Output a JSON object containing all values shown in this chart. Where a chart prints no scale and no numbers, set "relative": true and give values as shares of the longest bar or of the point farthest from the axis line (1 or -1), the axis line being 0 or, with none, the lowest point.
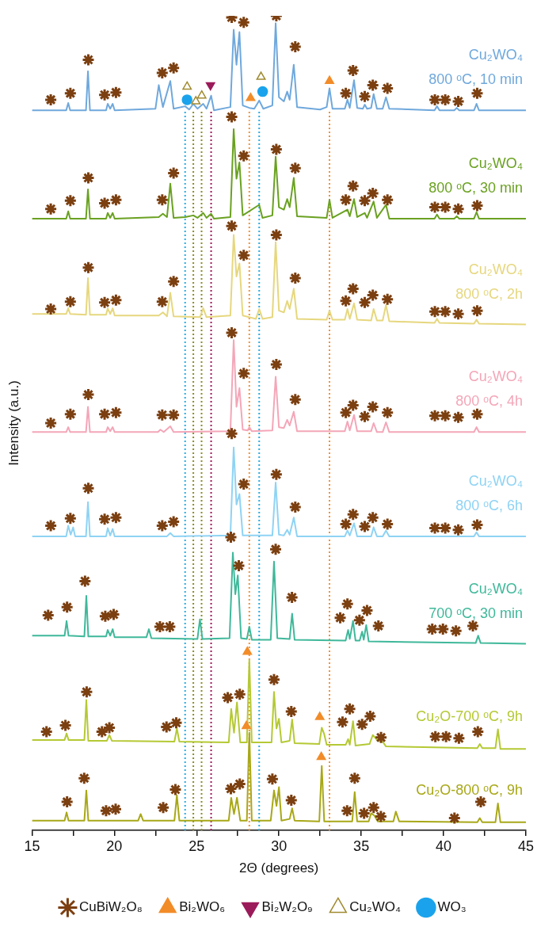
{
  "chart_data": {
    "type": "line",
    "relative": true,
    "xlabel": "2Θ (degrees)",
    "ylabel": "Intensity (a.u.)",
    "xlim": [
      15,
      45
    ],
    "xticks": [
      15,
      {
        "value": 17.5,
        "label": null
      },
      20,
      {
        "value": 22.5,
        "label": null
      },
      25,
      {
        "value": 27.5,
        "label": null
      },
      30,
      {
        "value": 32.5,
        "label": null
      },
      35,
      {
        "value": 37.5,
        "label": null
      },
      40,
      {
        "value": 42.5,
        "label": null
      },
      45
    ],
    "tick_labels": "x",
    "legend": "bottom",
    "ref_lines": [
      {
        "axis": "x",
        "value": 24.3,
        "color": "#29abe2",
        "line_style": "dotted"
      },
      {
        "axis": "x",
        "value": 24.8,
        "color": "#8c8c28",
        "line_style": "dotted"
      },
      {
        "axis": "x",
        "value": 25.3,
        "color": "#8c8c28",
        "line_style": "dotted"
      },
      {
        "axis": "x",
        "value": 25.88,
        "color": "#a0195a",
        "line_style": "dotted"
      },
      {
        "axis": "x",
        "value": 28.2,
        "color": "#f0913c",
        "line_style": "dotted"
      },
      {
        "axis": "x",
        "value": 28.8,
        "color": "#29abe2",
        "line_style": "dotted"
      },
      {
        "axis": "x",
        "value": 33.07,
        "color": "#f0913c",
        "line_style": "dotted"
      }
    ],
    "series": [
      {
        "type": "line",
        "marker": "none",
        "name": "Cu₂WO₄\n800 ᵒC, 10 min",
        "color": "#6fa8dc",
        "x": [
          15,
          17.08,
          17.2,
          17.32,
          18.28,
          18.4,
          18.52,
          19.5,
          19.6,
          19.75,
          19.9,
          20.02,
          22.5,
          22.7,
          22.95,
          23.4,
          23.6,
          24.3,
          24.55,
          24.8,
          25.05,
          25.4,
          25.6,
          25.88,
          26.05,
          27.05,
          27.25,
          27.42,
          27.6,
          27.8,
          28.2,
          28.5,
          28.8,
          29.05,
          29.6,
          29.8,
          30.0,
          30.3,
          30.5,
          30.65,
          30.9,
          31.1,
          32.5,
          32.9,
          33.07,
          33.25,
          34.0,
          34.16,
          34.3,
          34.56,
          34.75,
          35.1,
          35.21,
          35.35,
          35.6,
          35.75,
          35.95,
          36.3,
          36.5,
          36.7,
          39.45,
          39.6,
          39.75,
          40.65,
          40.8,
          40.95,
          41.85,
          42.0,
          42.15,
          45
        ],
        "values": [
          0.884,
          0.884,
          0.893,
          0.884,
          0.884,
          0.932,
          0.884,
          0.884,
          0.892,
          0.886,
          0.892,
          0.884,
          0.886,
          0.915,
          0.888,
          0.92,
          0.886,
          0.889,
          0.885,
          0.892,
          0.886,
          0.892,
          0.886,
          0.902,
          0.884,
          0.888,
          0.983,
          0.94,
          0.98,
          0.89,
          0.887,
          0.886,
          0.896,
          0.886,
          0.89,
          0.991,
          0.9,
          0.895,
          0.907,
          0.897,
          0.94,
          0.888,
          0.885,
          0.888,
          0.911,
          0.886,
          0.886,
          0.897,
          0.887,
          0.921,
          0.887,
          0.886,
          0.891,
          0.886,
          0.887,
          0.904,
          0.886,
          0.886,
          0.9,
          0.886,
          0.884,
          0.889,
          0.884,
          0.884,
          0.887,
          0.884,
          0.884,
          0.892,
          0.884,
          0.884
        ]
      },
      {
        "type": "line",
        "marker": "none",
        "name": "Cu₂WO₄\n800 ᵒC, 30 min",
        "color": "#6aa121",
        "x": [
          15,
          17.08,
          17.2,
          17.32,
          18.28,
          18.4,
          18.52,
          19.5,
          19.6,
          19.75,
          19.9,
          20.02,
          22.7,
          22.95,
          23.2,
          23.4,
          23.6,
          24.3,
          24.8,
          25.05,
          25.4,
          25.6,
          25.88,
          26.05,
          27.05,
          27.25,
          27.42,
          27.6,
          27.8,
          28.8,
          29.0,
          29.6,
          29.8,
          30.0,
          30.3,
          30.5,
          30.65,
          30.9,
          31.1,
          32.9,
          33.07,
          33.25,
          34.16,
          34.3,
          34.56,
          34.75,
          35.21,
          35.35,
          35.75,
          35.95,
          36.5,
          36.7,
          39.45,
          39.6,
          39.75,
          40.65,
          40.8,
          40.95,
          41.85,
          42.0,
          42.15,
          45
        ],
        "values": [
          0.751,
          0.751,
          0.76,
          0.751,
          0.751,
          0.787,
          0.751,
          0.751,
          0.758,
          0.752,
          0.758,
          0.751,
          0.753,
          0.757,
          0.753,
          0.794,
          0.752,
          0.753,
          0.755,
          0.752,
          0.758,
          0.752,
          0.757,
          0.751,
          0.753,
          0.861,
          0.8,
          0.82,
          0.755,
          0.768,
          0.752,
          0.755,
          0.827,
          0.765,
          0.762,
          0.775,
          0.765,
          0.801,
          0.754,
          0.752,
          0.774,
          0.752,
          0.762,
          0.754,
          0.775,
          0.753,
          0.758,
          0.752,
          0.772,
          0.752,
          0.768,
          0.751,
          0.751,
          0.756,
          0.751,
          0.751,
          0.754,
          0.751,
          0.751,
          0.759,
          0.751,
          0.751
        ]
      },
      {
        "type": "line",
        "marker": "none",
        "name": "Cu₂WO₄\n800 ᵒC, 2h",
        "color": "#e6d77e",
        "x": [
          15,
          17.08,
          17.2,
          17.32,
          18.28,
          18.4,
          18.52,
          19.5,
          19.6,
          19.75,
          19.9,
          20.02,
          22.7,
          22.95,
          23.2,
          23.4,
          23.6,
          25.2,
          25.4,
          25.6,
          27.05,
          27.25,
          27.42,
          27.6,
          27.8,
          28.6,
          28.8,
          29.0,
          29.6,
          29.8,
          30.0,
          30.3,
          30.5,
          30.65,
          30.9,
          31.1,
          32.9,
          33.07,
          33.25,
          34.0,
          34.16,
          34.3,
          34.56,
          34.75,
          35.6,
          35.75,
          35.95,
          36.3,
          36.5,
          36.7,
          39.45,
          39.6,
          39.75,
          41.85,
          42.0,
          42.15,
          45
        ],
        "values": [
          0.634,
          0.634,
          0.641,
          0.634,
          0.633,
          0.678,
          0.633,
          0.633,
          0.641,
          0.634,
          0.641,
          0.632,
          0.632,
          0.636,
          0.631,
          0.66,
          0.631,
          0.63,
          0.641,
          0.63,
          0.632,
          0.731,
          0.68,
          0.696,
          0.632,
          0.628,
          0.64,
          0.628,
          0.63,
          0.722,
          0.638,
          0.636,
          0.65,
          0.64,
          0.665,
          0.628,
          0.627,
          0.638,
          0.627,
          0.627,
          0.64,
          0.628,
          0.647,
          0.627,
          0.626,
          0.64,
          0.626,
          0.626,
          0.645,
          0.625,
          0.623,
          0.628,
          0.623,
          0.622,
          0.627,
          0.622,
          0.621
        ]
      },
      {
        "type": "line",
        "marker": "none",
        "name": "Cu₂WO₄\n800 ᵒC, 4h",
        "color": "#f4a6b8",
        "x": [
          15,
          17.08,
          17.2,
          17.32,
          18.28,
          18.4,
          18.52,
          19.5,
          19.6,
          19.75,
          19.9,
          20.02,
          22.65,
          22.8,
          23.0,
          23.4,
          23.6,
          27.05,
          27.25,
          27.42,
          27.6,
          27.8,
          28.1,
          28.2,
          28.35,
          29.6,
          29.8,
          30.0,
          30.3,
          30.5,
          30.65,
          30.9,
          31.1,
          34.0,
          34.16,
          34.3,
          34.56,
          34.75,
          35.6,
          35.75,
          35.95,
          36.3,
          36.5,
          36.7,
          41.85,
          42.0,
          42.15,
          45
        ],
        "values": [
          0.489,
          0.489,
          0.495,
          0.489,
          0.489,
          0.52,
          0.489,
          0.489,
          0.495,
          0.49,
          0.495,
          0.489,
          0.489,
          0.492,
          0.489,
          0.496,
          0.489,
          0.49,
          0.602,
          0.52,
          0.543,
          0.492,
          0.491,
          0.495,
          0.49,
          0.491,
          0.557,
          0.495,
          0.494,
          0.504,
          0.497,
          0.514,
          0.49,
          0.49,
          0.502,
          0.491,
          0.51,
          0.49,
          0.49,
          0.5,
          0.489,
          0.489,
          0.501,
          0.489,
          0.489,
          0.495,
          0.489,
          0.489
        ]
      },
      {
        "type": "line",
        "marker": "none",
        "name": "Cu₂WO₄\n800 ᵒC, 6h",
        "color": "#8fd3f4",
        "x": [
          15,
          17.08,
          17.2,
          17.35,
          17.5,
          17.62,
          18.28,
          18.4,
          18.52,
          19.5,
          19.6,
          19.75,
          19.9,
          20.02,
          23.2,
          23.4,
          23.6,
          27.05,
          27.25,
          27.42,
          27.6,
          27.8,
          29.6,
          29.8,
          30.0,
          30.3,
          30.5,
          30.65,
          30.9,
          31.1,
          34.0,
          34.16,
          34.3,
          34.56,
          34.75,
          35.6,
          35.75,
          35.95,
          36.3,
          36.5,
          36.7,
          41.85,
          42.0,
          42.15,
          45
        ],
        "values": [
          0.361,
          0.361,
          0.374,
          0.363,
          0.372,
          0.361,
          0.361,
          0.403,
          0.361,
          0.361,
          0.371,
          0.362,
          0.37,
          0.361,
          0.361,
          0.365,
          0.361,
          0.362,
          0.47,
          0.4,
          0.413,
          0.362,
          0.362,
          0.427,
          0.363,
          0.362,
          0.369,
          0.363,
          0.384,
          0.361,
          0.361,
          0.368,
          0.362,
          0.377,
          0.361,
          0.361,
          0.372,
          0.361,
          0.361,
          0.368,
          0.361,
          0.361,
          0.366,
          0.361,
          0.361
        ]
      },
      {
        "type": "line",
        "marker": "none",
        "name": "Cu₂WO₄\n700 ᵒC, 30 min",
        "color": "#3fb89a",
        "x": [
          15,
          16.98,
          17.1,
          17.22,
          18.18,
          18.3,
          18.42,
          19.5,
          19.6,
          19.75,
          19.9,
          20.02,
          21.95,
          22.1,
          22.25,
          25.05,
          25.2,
          25.35,
          27.0,
          27.2,
          27.35,
          27.5,
          27.7,
          28.05,
          28.2,
          28.35,
          29.5,
          29.7,
          29.9,
          30.65,
          30.8,
          30.95,
          34.05,
          34.2,
          34.3,
          34.5,
          34.65,
          34.9,
          35.05,
          35.15,
          35.3,
          35.45,
          41.95,
          42.1,
          42.25,
          45
        ],
        "values": [
          0.239,
          0.239,
          0.257,
          0.239,
          0.238,
          0.288,
          0.238,
          0.238,
          0.246,
          0.239,
          0.247,
          0.237,
          0.237,
          0.247,
          0.236,
          0.235,
          0.259,
          0.235,
          0.236,
          0.341,
          0.29,
          0.313,
          0.236,
          0.235,
          0.25,
          0.234,
          0.234,
          0.33,
          0.236,
          0.235,
          0.266,
          0.234,
          0.233,
          0.246,
          0.235,
          0.257,
          0.233,
          0.233,
          0.244,
          0.234,
          0.252,
          0.232,
          0.23,
          0.239,
          0.23,
          0.229
        ]
      },
      {
        "type": "line",
        "marker": "none",
        "name": "Cu₂O-700 ᵒC, 9h",
        "color": "#b5c934",
        "x": [
          15,
          16.98,
          17.1,
          17.22,
          18.18,
          18.3,
          18.42,
          19.55,
          19.7,
          19.85,
          23.65,
          23.8,
          23.95,
          26.95,
          27.1,
          27.27,
          27.45,
          27.65,
          28.05,
          28.2,
          28.35,
          29.55,
          29.7,
          29.85,
          30.0,
          30.15,
          30.65,
          30.8,
          30.95,
          32.45,
          32.6,
          32.75,
          32.9,
          34.05,
          34.2,
          34.3,
          34.5,
          34.65,
          35.5,
          35.7,
          36.0,
          36.3,
          36.5,
          42.05,
          42.2,
          42.35,
          43.15,
          43.3,
          43.45,
          45
        ],
        "values": [
          0.111,
          0.111,
          0.119,
          0.111,
          0.111,
          0.16,
          0.11,
          0.11,
          0.117,
          0.11,
          0.109,
          0.125,
          0.109,
          0.108,
          0.149,
          0.12,
          0.157,
          0.108,
          0.108,
          0.209,
          0.108,
          0.108,
          0.17,
          0.125,
          0.137,
          0.108,
          0.11,
          0.136,
          0.107,
          0.106,
          0.126,
          0.118,
          0.105,
          0.105,
          0.112,
          0.105,
          0.134,
          0.104,
          0.106,
          0.117,
          0.11,
          0.109,
          0.103,
          0.101,
          0.106,
          0.101,
          0.101,
          0.124,
          0.1,
          0.1
        ]
      },
      {
        "type": "line",
        "marker": "none",
        "name": "Cu₂O-800 ᵒC, 9h",
        "color": "#a8a818",
        "x": [
          15,
          16.98,
          17.1,
          17.22,
          18.18,
          18.3,
          18.42,
          21.45,
          21.6,
          21.75,
          23.65,
          23.8,
          23.95,
          26.95,
          27.1,
          27.27,
          27.45,
          27.65,
          28.05,
          28.2,
          28.35,
          29.5,
          29.7,
          29.85,
          30.0,
          30.15,
          30.65,
          30.8,
          30.95,
          32.45,
          32.6,
          32.75,
          34.45,
          34.6,
          34.75,
          35.45,
          35.6,
          35.8,
          36.0,
          36.95,
          37.1,
          37.3,
          42.05,
          42.2,
          42.35,
          43.15,
          43.3,
          43.45,
          45
        ],
        "values": [
          0.012,
          0.012,
          0.022,
          0.012,
          0.012,
          0.049,
          0.012,
          0.012,
          0.02,
          0.012,
          0.012,
          0.043,
          0.012,
          0.012,
          0.04,
          0.02,
          0.04,
          0.012,
          0.012,
          0.12,
          0.012,
          0.012,
          0.049,
          0.03,
          0.053,
          0.012,
          0.014,
          0.027,
          0.012,
          0.011,
          0.079,
          0.011,
          0.011,
          0.047,
          0.011,
          0.011,
          0.021,
          0.018,
          0.011,
          0.011,
          0.023,
          0.011,
          0.01,
          0.015,
          0.01,
          0.01,
          0.033,
          0.01,
          0.01
        ]
      },
      {
        "type": "scatter",
        "marker": "cross",
        "name": "CuBiW₂O₈",
        "color": "#7b3f10",
        "x": [
          16.14,
          17.33,
          18.42,
          19.41,
          20.1,
          22.91,
          23.6,
          27.13,
          27.86,
          29.84,
          30.99,
          34.06,
          34.5,
          35.21,
          35.7,
          36.59,
          39.47,
          40.1,
          40.89,
          42.04,
          16.14,
          17.33,
          18.42,
          19.41,
          20.1,
          22.91,
          23.6,
          27.13,
          27.86,
          29.84,
          30.99,
          34.06,
          34.5,
          35.21,
          35.7,
          36.59,
          39.47,
          40.1,
          40.89,
          42.04,
          16.14,
          17.33,
          18.42,
          19.41,
          20.1,
          22.91,
          23.6,
          27.13,
          27.86,
          29.84,
          30.99,
          34.06,
          34.5,
          35.21,
          35.7,
          36.59,
          39.47,
          40.1,
          40.89,
          42.04,
          16.14,
          17.33,
          18.42,
          19.41,
          20.1,
          22.91,
          23.6,
          27.13,
          27.86,
          29.84,
          30.99,
          34.06,
          34.5,
          35.21,
          35.7,
          36.59,
          39.47,
          40.1,
          40.89,
          42.04,
          16.14,
          17.33,
          18.42,
          19.41,
          20.1,
          22.91,
          23.6,
          27.13,
          27.86,
          29.84,
          30.99,
          34.06,
          34.5,
          35.21,
          35.7,
          36.59,
          39.47,
          40.1,
          40.89,
          42.04,
          15.98,
          17.13,
          18.22,
          19.45,
          19.96,
          22.77,
          23.37,
          27.08,
          27.56,
          29.8,
          30.79,
          33.72,
          34.16,
          34.89,
          35.35,
          36.04,
          39.31,
          39.96,
          40.75,
          41.78,
          15.88,
          17.03,
          18.32,
          19.25,
          19.7,
          23.17,
          23.76,
          26.89,
          27.62,
          29.7,
          30.75,
          33.86,
          34.3,
          35.05,
          35.54,
          36.2,
          39.5,
          40.15,
          40.93,
          42.08,
          17.13,
          18.17,
          19.5,
          20.08,
          22.97,
          23.71,
          27.08,
          27.62,
          29.6,
          30.75,
          34.14,
          34.6,
          35.17,
          35.75,
          36.19,
          40.66,
          42.26
        ],
        "values": [
          0.897,
          0.905,
          0.946,
          0.903,
          0.906,
          0.93,
          0.936,
          0.998,
          0.992,
          1.0,
          0.962,
          0.905,
          0.933,
          0.901,
          0.915,
          0.911,
          0.897,
          0.897,
          0.895,
          0.905,
          0.763,
          0.773,
          0.801,
          0.77,
          0.774,
          0.774,
          0.807,
          0.876,
          0.828,
          0.836,
          0.813,
          0.774,
          0.791,
          0.773,
          0.782,
          0.774,
          0.765,
          0.765,
          0.763,
          0.767,
          0.64,
          0.649,
          0.691,
          0.648,
          0.651,
          0.649,
          0.674,
          0.742,
          0.706,
          0.731,
          0.678,
          0.65,
          0.665,
          0.648,
          0.657,
          0.652,
          0.637,
          0.637,
          0.634,
          0.638,
          0.5,
          0.511,
          0.535,
          0.511,
          0.513,
          0.51,
          0.51,
          0.611,
          0.561,
          0.572,
          0.529,
          0.513,
          0.522,
          0.508,
          0.52,
          0.513,
          0.509,
          0.509,
          0.507,
          0.511,
          0.374,
          0.383,
          0.42,
          0.382,
          0.384,
          0.374,
          0.379,
          0.487,
          0.425,
          0.437,
          0.397,
          0.376,
          0.388,
          0.373,
          0.384,
          0.376,
          0.371,
          0.371,
          0.369,
          0.375,
          0.264,
          0.274,
          0.306,
          0.263,
          0.265,
          0.25,
          0.25,
          0.36,
          0.325,
          0.345,
          0.286,
          0.261,
          0.278,
          0.258,
          0.27,
          0.251,
          0.247,
          0.247,
          0.245,
          0.251,
          0.121,
          0.129,
          0.17,
          0.121,
          0.126,
          0.127,
          0.132,
          0.163,
          0.167,
          0.185,
          0.146,
          0.133,
          0.149,
          0.13,
          0.14,
          0.114,
          0.115,
          0.115,
          0.113,
          0.121,
          0.035,
          0.064,
          0.024,
          0.026,
          0.028,
          0.05,
          0.051,
          0.057,
          0.063,
          0.037,
          0.024,
          0.064,
          0.021,
          0.028,
          0.017,
          0.015,
          0.035
        ]
      },
      {
        "type": "scatter",
        "marker": "triangle",
        "name": "Bi₂WO₆",
        "color": "#f28c28",
        "x": [
          28.28,
          33.07,
          28.08,
          32.48,
          28.02,
          32.57
        ],
        "values": [
          0.899,
          0.92,
          0.219,
          0.139,
          0.128,
          0.09
        ]
      },
      {
        "type": "scatter",
        "marker": "triangle_down",
        "name": "Bi₂W₂O₉",
        "color": "#9b1b5a",
        "x": [
          25.84
        ],
        "values": [
          0.915
        ]
      },
      {
        "type": "scatter",
        "marker": "triangle-open",
        "name": "Cu₂WO₄",
        "color": "#a08a30",
        "x": [
          24.42,
          24.95,
          25.31,
          28.91
        ],
        "values": [
          0.913,
          0.895,
          0.902,
          0.925
        ]
      },
      {
        "type": "scatter",
        "marker": "circle",
        "name": "WO₃",
        "color": "#1aa3ec",
        "x": [
          24.42,
          29.01
        ],
        "values": [
          0.897,
          0.907
        ]
      }
    ]
  }
}
